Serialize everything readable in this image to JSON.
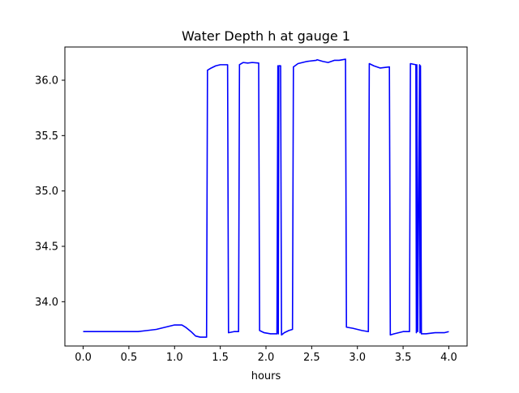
{
  "chart_data": {
    "type": "line",
    "title": "Water Depth h at gauge 1",
    "xlabel": "hours",
    "ylabel": "",
    "xlim": [
      -0.2,
      4.2
    ],
    "ylim": [
      33.6,
      36.3
    ],
    "xticks": [
      0.0,
      0.5,
      1.0,
      1.5,
      2.0,
      2.5,
      3.0,
      3.5,
      4.0
    ],
    "xtick_labels": [
      "0.0",
      "0.5",
      "1.0",
      "1.5",
      "2.0",
      "2.5",
      "3.0",
      "3.5",
      "4.0"
    ],
    "yticks": [
      34.0,
      34.5,
      35.0,
      35.5,
      36.0
    ],
    "ytick_labels": [
      "34.0",
      "34.5",
      "35.0",
      "35.5",
      "36.0"
    ],
    "grid": false,
    "legend": false,
    "series": [
      {
        "color": "#0000ff",
        "x": [
          0.0,
          0.2,
          0.4,
          0.6,
          0.7,
          0.8,
          0.9,
          1.0,
          1.08,
          1.12,
          1.18,
          1.23,
          1.28,
          1.35,
          1.36,
          1.4,
          1.45,
          1.5,
          1.58,
          1.59,
          1.65,
          1.7,
          1.71,
          1.75,
          1.8,
          1.85,
          1.92,
          1.93,
          1.98,
          2.05,
          2.12,
          2.13,
          2.135,
          2.14,
          2.16,
          2.17,
          2.2,
          2.25,
          2.29,
          2.3,
          2.35,
          2.45,
          2.55,
          2.56,
          2.62,
          2.68,
          2.75,
          2.8,
          2.87,
          2.88,
          2.95,
          3.05,
          3.12,
          3.13,
          3.18,
          3.25,
          3.35,
          3.36,
          3.4,
          3.5,
          3.57,
          3.58,
          3.64,
          3.645,
          3.65,
          3.66,
          3.68,
          3.685,
          3.69,
          3.7,
          3.75,
          3.85,
          3.95,
          4.0
        ],
        "y": [
          33.73,
          33.73,
          33.73,
          33.73,
          33.74,
          33.75,
          33.77,
          33.79,
          33.79,
          33.77,
          33.73,
          33.69,
          33.68,
          33.68,
          36.09,
          36.11,
          36.13,
          36.14,
          36.14,
          33.72,
          33.73,
          33.73,
          36.14,
          36.16,
          36.155,
          36.16,
          36.155,
          33.74,
          33.72,
          33.71,
          33.71,
          36.13,
          33.71,
          36.13,
          36.13,
          33.7,
          33.72,
          33.74,
          33.75,
          36.12,
          36.15,
          36.17,
          36.18,
          36.185,
          36.17,
          36.16,
          36.18,
          36.18,
          36.19,
          33.77,
          33.76,
          33.74,
          33.73,
          36.15,
          36.13,
          36.11,
          36.12,
          33.7,
          33.71,
          33.73,
          33.73,
          36.15,
          36.14,
          33.72,
          36.14,
          33.73,
          36.14,
          33.72,
          36.13,
          33.71,
          33.71,
          33.72,
          33.72,
          33.73
        ]
      }
    ]
  }
}
